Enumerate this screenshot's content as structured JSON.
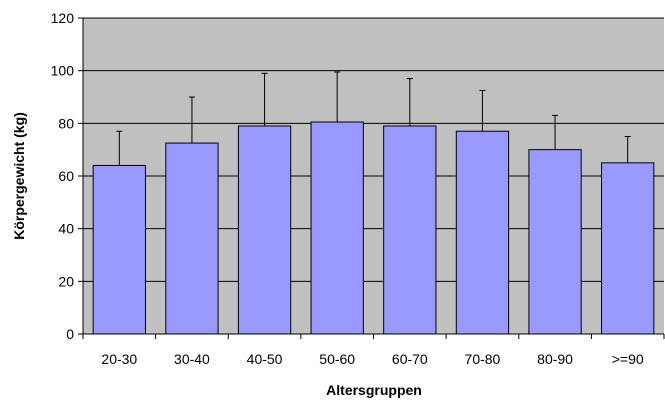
{
  "chart_data": {
    "type": "bar",
    "title": "",
    "xlabel": "Altersgruppen",
    "ylabel": "Körpergewicht (kg)",
    "categories": [
      "20-30",
      "30-40",
      "40-50",
      "50-60",
      "60-70",
      "70-80",
      "80-90",
      ">=90"
    ],
    "values": [
      64,
      72.5,
      79,
      80.5,
      79,
      77,
      70,
      65
    ],
    "error_upper": [
      77,
      90,
      99,
      99.5,
      97,
      92.5,
      83,
      75
    ],
    "ylim": [
      0,
      120
    ],
    "yticks": [
      0,
      20,
      40,
      60,
      80,
      100,
      120
    ],
    "grid": true,
    "legend": "none",
    "colors": {
      "bar_fill": "#9999ff",
      "plot_background": "#c0c0c0",
      "gridline": "#000000",
      "bar_stroke": "#000000"
    }
  }
}
